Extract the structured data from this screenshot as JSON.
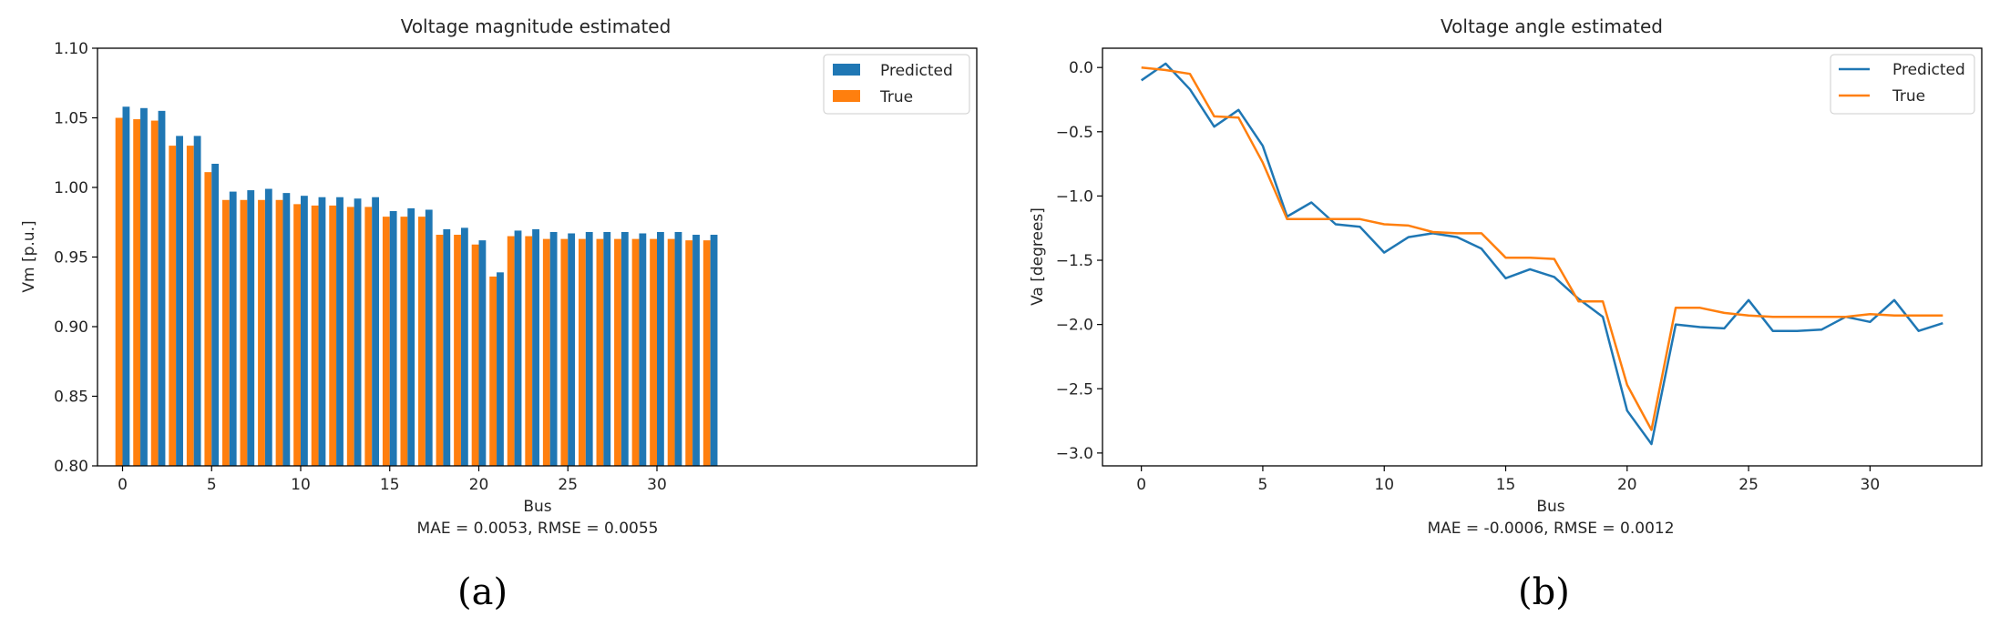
{
  "sublabels": [
    "(a)",
    "(b)"
  ],
  "colors": {
    "predicted": "#1f77b4",
    "true": "#ff7f0e",
    "axis": "#000000",
    "text": "#262626"
  },
  "chart_data": [
    {
      "type": "bar",
      "title": "Voltage magnitude estimated",
      "xlabel": "Bus",
      "ylabel": "Vm [p.u.]",
      "caption": "MAE = 0.0053, RMSE = 0.0055",
      "ylim": [
        0.8,
        1.1
      ],
      "yticks": [
        0.8,
        0.85,
        0.9,
        0.95,
        1.0,
        1.05,
        1.1
      ],
      "ytick_labels": [
        "0.80",
        "0.85",
        "0.90",
        "0.95",
        "1.00",
        "1.05",
        "1.10"
      ],
      "xticks": [
        0,
        5,
        10,
        15,
        20,
        25,
        30
      ],
      "xtick_labels": [
        "0",
        "5",
        "10",
        "15",
        "20",
        "25",
        "30"
      ],
      "legend": "top-right",
      "categories": [
        0,
        1,
        2,
        3,
        4,
        5,
        6,
        7,
        8,
        9,
        10,
        11,
        12,
        13,
        14,
        15,
        16,
        17,
        18,
        19,
        20,
        21,
        22,
        23,
        24,
        25,
        26,
        27,
        28,
        29,
        30,
        31,
        32,
        33
      ],
      "series": [
        {
          "name": "Predicted",
          "values": [
            1.058,
            1.057,
            1.055,
            1.037,
            1.037,
            1.017,
            0.997,
            0.998,
            0.999,
            0.996,
            0.994,
            0.993,
            0.993,
            0.992,
            0.993,
            0.983,
            0.985,
            0.984,
            0.97,
            0.971,
            0.962,
            0.939,
            0.969,
            0.97,
            0.968,
            0.967,
            0.968,
            0.968,
            0.968,
            0.967,
            0.968,
            0.968,
            0.966,
            0.966
          ]
        },
        {
          "name": "True",
          "values": [
            1.05,
            1.049,
            1.048,
            1.03,
            1.03,
            1.011,
            0.991,
            0.991,
            0.991,
            0.991,
            0.988,
            0.987,
            0.987,
            0.986,
            0.986,
            0.979,
            0.979,
            0.979,
            0.966,
            0.966,
            0.959,
            0.936,
            0.965,
            0.965,
            0.963,
            0.963,
            0.963,
            0.963,
            0.963,
            0.963,
            0.963,
            0.963,
            0.962,
            0.962
          ]
        }
      ]
    },
    {
      "type": "line",
      "title": "Voltage angle estimated",
      "xlabel": "Bus",
      "ylabel": "Va [degrees]",
      "caption": "MAE = -0.0006, RMSE = 0.0012",
      "ylim": [
        -3.1,
        0.15
      ],
      "yticks": [
        0.0,
        -0.5,
        -1.0,
        -1.5,
        -2.0,
        -2.5,
        -3.0
      ],
      "ytick_labels": [
        "0.0",
        "−0.5",
        "−1.0",
        "−1.5",
        "−2.0",
        "−2.5",
        "−3.0"
      ],
      "xlim": [
        -1.6,
        34.6
      ],
      "xticks": [
        0,
        5,
        10,
        15,
        20,
        25,
        30
      ],
      "xtick_labels": [
        "0",
        "5",
        "10",
        "15",
        "20",
        "25",
        "30"
      ],
      "legend": "top-right",
      "x": [
        0,
        1,
        2,
        3,
        4,
        5,
        6,
        7,
        8,
        9,
        10,
        11,
        12,
        13,
        14,
        15,
        16,
        17,
        18,
        19,
        20,
        21,
        22,
        23,
        24,
        25,
        26,
        27,
        28,
        29,
        30,
        31,
        32,
        33
      ],
      "series": [
        {
          "name": "Predicted",
          "values": [
            -0.1,
            0.03,
            -0.17,
            -0.46,
            -0.33,
            -0.61,
            -1.16,
            -1.05,
            -1.22,
            -1.24,
            -1.44,
            -1.32,
            -1.29,
            -1.32,
            -1.41,
            -1.64,
            -1.57,
            -1.63,
            -1.8,
            -1.94,
            -2.67,
            -2.93,
            -2.0,
            -2.02,
            -2.03,
            -1.81,
            -2.05,
            -2.05,
            -2.04,
            -1.94,
            -1.98,
            -1.81,
            -2.05,
            -1.99
          ]
        },
        {
          "name": "True",
          "values": [
            0.0,
            -0.02,
            -0.05,
            -0.38,
            -0.39,
            -0.74,
            -1.18,
            -1.18,
            -1.18,
            -1.18,
            -1.22,
            -1.23,
            -1.28,
            -1.29,
            -1.29,
            -1.48,
            -1.48,
            -1.49,
            -1.82,
            -1.82,
            -2.47,
            -2.82,
            -1.87,
            -1.87,
            -1.91,
            -1.93,
            -1.94,
            -1.94,
            -1.94,
            -1.94,
            -1.92,
            -1.93,
            -1.93,
            -1.93
          ]
        }
      ]
    }
  ]
}
